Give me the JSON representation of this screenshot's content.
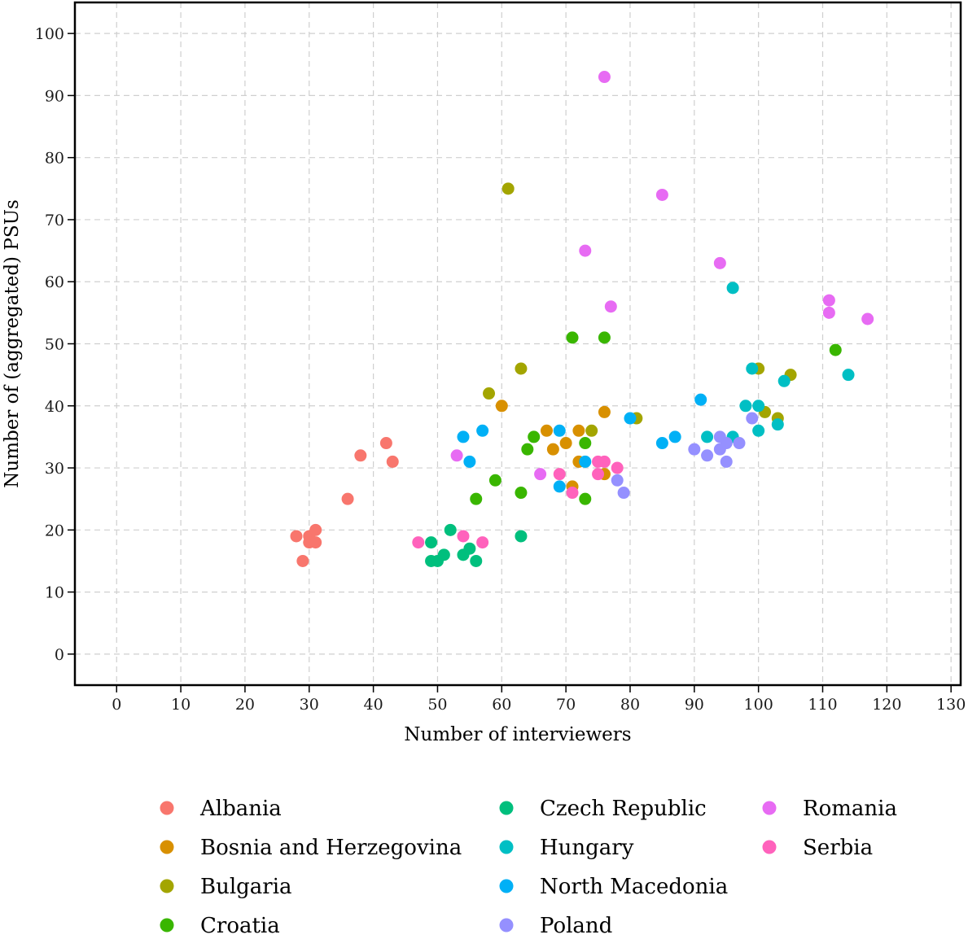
{
  "chart_data": {
    "type": "scatter",
    "xlabel": "Number of interviewers",
    "ylabel": "Number of (aggregated) PSUs",
    "xlim": [
      -6.5,
      131.5
    ],
    "ylim": [
      -5,
      105
    ],
    "xticks": [
      0,
      10,
      20,
      30,
      40,
      50,
      60,
      70,
      80,
      90,
      100,
      110,
      120,
      130
    ],
    "yticks": [
      0,
      10,
      20,
      30,
      40,
      50,
      60,
      70,
      80,
      90,
      100
    ],
    "grid": true,
    "legend_position": "bottom",
    "series": [
      {
        "name": "Albania",
        "color": "#F8766D",
        "points": [
          [
            28,
            19
          ],
          [
            29,
            15
          ],
          [
            30,
            19
          ],
          [
            30,
            18
          ],
          [
            31,
            20
          ],
          [
            31,
            18
          ],
          [
            36,
            25
          ],
          [
            38,
            32
          ],
          [
            42,
            34
          ],
          [
            43,
            31
          ]
        ]
      },
      {
        "name": "Bosnia and Herzegovina",
        "color": "#D89000",
        "points": [
          [
            60,
            40
          ],
          [
            67,
            36
          ],
          [
            68,
            33
          ],
          [
            70,
            34
          ],
          [
            71,
            27
          ],
          [
            72,
            36
          ],
          [
            72,
            31
          ],
          [
            76,
            39
          ],
          [
            76,
            29
          ]
        ]
      },
      {
        "name": "Bulgaria",
        "color": "#A3A500",
        "points": [
          [
            58,
            42
          ],
          [
            61,
            75
          ],
          [
            63,
            46
          ],
          [
            74,
            36
          ],
          [
            81,
            38
          ],
          [
            100,
            46
          ],
          [
            101,
            39
          ],
          [
            103,
            38
          ],
          [
            105,
            45
          ]
        ]
      },
      {
        "name": "Croatia",
        "color": "#39B600",
        "points": [
          [
            56,
            25
          ],
          [
            59,
            28
          ],
          [
            63,
            26
          ],
          [
            64,
            33
          ],
          [
            65,
            35
          ],
          [
            71,
            51
          ],
          [
            73,
            34
          ],
          [
            73,
            25
          ],
          [
            76,
            51
          ],
          [
            112,
            49
          ]
        ]
      },
      {
        "name": "Czech Republic",
        "color": "#00BF7D",
        "points": [
          [
            49,
            18
          ],
          [
            49,
            15
          ],
          [
            50,
            15
          ],
          [
            51,
            16
          ],
          [
            52,
            20
          ],
          [
            54,
            16
          ],
          [
            55,
            17
          ],
          [
            56,
            15
          ],
          [
            63,
            19
          ]
        ]
      },
      {
        "name": "Hungary",
        "color": "#00BFC4",
        "points": [
          [
            92,
            35
          ],
          [
            96,
            59
          ],
          [
            96,
            35
          ],
          [
            98,
            40
          ],
          [
            99,
            46
          ],
          [
            100,
            40
          ],
          [
            100,
            36
          ],
          [
            103,
            37
          ],
          [
            104,
            44
          ],
          [
            114,
            45
          ]
        ]
      },
      {
        "name": "North Macedonia",
        "color": "#00B0F6",
        "points": [
          [
            54,
            35
          ],
          [
            55,
            31
          ],
          [
            57,
            36
          ],
          [
            69,
            36
          ],
          [
            69,
            27
          ],
          [
            73,
            31
          ],
          [
            80,
            38
          ],
          [
            85,
            34
          ],
          [
            87,
            35
          ],
          [
            91,
            41
          ]
        ]
      },
      {
        "name": "Poland",
        "color": "#9590FF",
        "points": [
          [
            78,
            28
          ],
          [
            79,
            26
          ],
          [
            90,
            33
          ],
          [
            92,
            32
          ],
          [
            94,
            35
          ],
          [
            94,
            33
          ],
          [
            95,
            31
          ],
          [
            95,
            34
          ],
          [
            97,
            34
          ],
          [
            99,
            38
          ]
        ]
      },
      {
        "name": "Romania",
        "color": "#E76BF3",
        "points": [
          [
            53,
            32
          ],
          [
            66,
            29
          ],
          [
            73,
            65
          ],
          [
            76,
            93
          ],
          [
            77,
            56
          ],
          [
            85,
            74
          ],
          [
            94,
            63
          ],
          [
            111,
            57
          ],
          [
            111,
            55
          ],
          [
            117,
            54
          ]
        ]
      },
      {
        "name": "Serbia",
        "color": "#FF62BC",
        "points": [
          [
            47,
            18
          ],
          [
            54,
            19
          ],
          [
            57,
            18
          ],
          [
            69,
            29
          ],
          [
            71,
            26
          ],
          [
            75,
            31
          ],
          [
            75,
            29
          ],
          [
            76,
            31
          ],
          [
            78,
            30
          ]
        ]
      }
    ]
  }
}
